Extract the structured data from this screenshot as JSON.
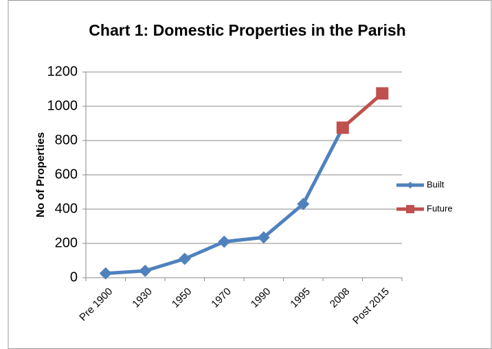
{
  "chart_data": {
    "type": "line",
    "title": "Chart 1: Domestic Properties in the Parish",
    "y_label": "No of Properties",
    "categories": [
      "Pre 1900",
      "1930",
      "1950",
      "1970",
      "1990",
      "1995",
      "2008",
      "Post 2015"
    ],
    "series": [
      {
        "name": "Built",
        "color": "#4f81bd",
        "marker": "diamond",
        "values": [
          25,
          40,
          110,
          210,
          235,
          430,
          875,
          null
        ]
      },
      {
        "name": "Future",
        "color": "#c0504d",
        "marker": "square",
        "values": [
          null,
          null,
          null,
          null,
          null,
          null,
          875,
          1075
        ]
      }
    ],
    "ylim": [
      0,
      1200
    ],
    "yticks": [
      0,
      200,
      400,
      600,
      800,
      1000,
      1200
    ],
    "grid": true,
    "legend": "right"
  }
}
